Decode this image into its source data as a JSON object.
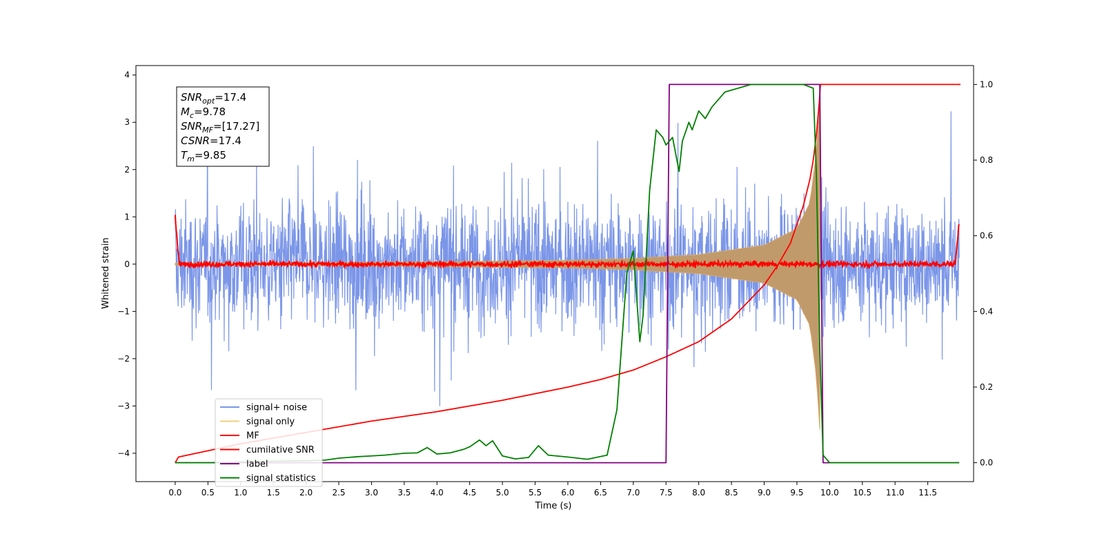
{
  "chart_data": {
    "type": "line",
    "xlabel": "Time (s)",
    "ylabel": "Whitened strain",
    "xlim": [
      -0.6,
      12.2
    ],
    "ylim": [
      -4.6,
      4.2
    ],
    "y2lim": [
      -0.05,
      1.05
    ],
    "grid": false,
    "legend_position": "lower-left",
    "x_ticks": [
      0.0,
      0.5,
      1.0,
      1.5,
      2.0,
      2.5,
      3.0,
      3.5,
      4.0,
      4.5,
      5.0,
      5.5,
      6.0,
      6.5,
      7.0,
      7.5,
      8.0,
      8.5,
      9.0,
      9.5,
      10.0,
      10.5,
      11.0,
      11.5
    ],
    "x_tick_labels": [
      "0.0",
      "0.5",
      "1.0",
      "1.5",
      "2.0",
      "2.5",
      "3.0",
      "3.5",
      "4.0",
      "4.5",
      "5.0",
      "5.5",
      "6.0",
      "6.5",
      "7.0",
      "7.5",
      "8.0",
      "8.5",
      "9.0",
      "9.5",
      "10.0",
      "10.5",
      "11.0",
      "11.5"
    ],
    "y_ticks": [
      -4,
      -3,
      -2,
      -1,
      0,
      1,
      2,
      3,
      4
    ],
    "y_tick_labels": [
      "−4",
      "−3",
      "−2",
      "−1",
      "0",
      "1",
      "2",
      "3",
      "4"
    ],
    "y2_ticks": [
      0.0,
      0.2,
      0.4,
      0.6,
      0.8,
      1.0
    ],
    "y2_tick_labels": [
      "0.0",
      "0.2",
      "0.4",
      "0.6",
      "0.8",
      "1.0"
    ],
    "annotation": [
      {
        "sym": "SNR",
        "sub": "opt",
        "rest": "=17.4"
      },
      {
        "sym": "M",
        "sub": "c",
        "rest": "=9.78"
      },
      {
        "sym": "SNR",
        "sub": "MF",
        "rest": "=[17.27]"
      },
      {
        "sym": "CSNR",
        "sub": "",
        "rest": "=17.4"
      },
      {
        "sym": "T",
        "sub": "m",
        "rest": "=9.85"
      }
    ],
    "series": [
      {
        "name": "signal+ noise",
        "color": "#7b96e8",
        "axis": "left",
        "kind": "noise",
        "t_start": 0.0,
        "t_end": 11.98,
        "envelope": 1.9,
        "baseline": 0.0
      },
      {
        "name": "signal only",
        "color": "#f5cd7a",
        "axis": "left",
        "kind": "chirp",
        "t_start": 0.0,
        "t_end": 9.85,
        "amplitude_envelope": {
          "x": [
            0,
            2,
            4,
            6,
            7,
            8,
            9,
            9.5,
            9.7,
            9.8,
            9.85
          ],
          "y": [
            0.02,
            0.03,
            0.05,
            0.08,
            0.12,
            0.2,
            0.4,
            0.75,
            1.3,
            2.4,
            3.5
          ]
        }
      },
      {
        "name": "MF",
        "color": "#ff0000",
        "axis": "left",
        "kind": "mf",
        "t_start": 0.0,
        "t_end": 11.98,
        "noise_amp": 0.06,
        "edge_start": 1.0,
        "edge_end": 0.9
      },
      {
        "name": "cumilative SNR",
        "color": "#ff0000",
        "axis": "right",
        "x": [
          0,
          0.05,
          1,
          2,
          3,
          4,
          5,
          6,
          6.5,
          7,
          7.5,
          8,
          8.5,
          9,
          9.2,
          9.4,
          9.5,
          9.6,
          9.7,
          9.75,
          9.8,
          9.84,
          9.86,
          12.0
        ],
        "y": [
          0.0,
          0.015,
          0.05,
          0.08,
          0.11,
          0.135,
          0.165,
          0.2,
          0.22,
          0.245,
          0.28,
          0.32,
          0.38,
          0.47,
          0.52,
          0.58,
          0.63,
          0.68,
          0.75,
          0.8,
          0.87,
          0.95,
          1.0,
          1.0
        ]
      },
      {
        "name": "label",
        "color": "#800080",
        "axis": "right",
        "x": [
          0.0,
          7.5,
          7.55,
          9.85,
          9.9,
          11.98
        ],
        "y": [
          0.0,
          0.0,
          1.0,
          1.0,
          0.0,
          0.0
        ]
      },
      {
        "name": "signal statistics",
        "color": "#008000",
        "axis": "right",
        "x": [
          0.0,
          0.5,
          1.0,
          1.5,
          2.0,
          2.3,
          2.5,
          2.8,
          3.0,
          3.2,
          3.5,
          3.7,
          3.85,
          4.0,
          4.2,
          4.4,
          4.5,
          4.65,
          4.75,
          4.85,
          5.0,
          5.2,
          5.4,
          5.55,
          5.7,
          6.0,
          6.3,
          6.6,
          6.75,
          6.9,
          7.0,
          7.1,
          7.15,
          7.25,
          7.35,
          7.45,
          7.5,
          7.6,
          7.7,
          7.75,
          7.85,
          7.9,
          8.0,
          8.1,
          8.2,
          8.3,
          8.4,
          8.5,
          8.6,
          8.7,
          8.8,
          9.0,
          9.3,
          9.6,
          9.75,
          9.8,
          9.85,
          9.9,
          10.0,
          11.5,
          11.98
        ],
        "y": [
          0.0,
          0.0,
          0.002,
          0.004,
          0.005,
          0.007,
          0.012,
          0.016,
          0.018,
          0.02,
          0.025,
          0.026,
          0.04,
          0.023,
          0.026,
          0.035,
          0.042,
          0.06,
          0.045,
          0.058,
          0.018,
          0.01,
          0.014,
          0.045,
          0.02,
          0.015,
          0.009,
          0.02,
          0.14,
          0.5,
          0.56,
          0.32,
          0.39,
          0.72,
          0.88,
          0.86,
          0.84,
          0.86,
          0.77,
          0.85,
          0.9,
          0.88,
          0.93,
          0.91,
          0.94,
          0.96,
          0.98,
          0.985,
          0.99,
          0.995,
          1.0,
          1.0,
          1.0,
          1.0,
          0.99,
          0.75,
          0.3,
          0.02,
          0.0,
          0.0,
          0.0
        ]
      }
    ]
  }
}
